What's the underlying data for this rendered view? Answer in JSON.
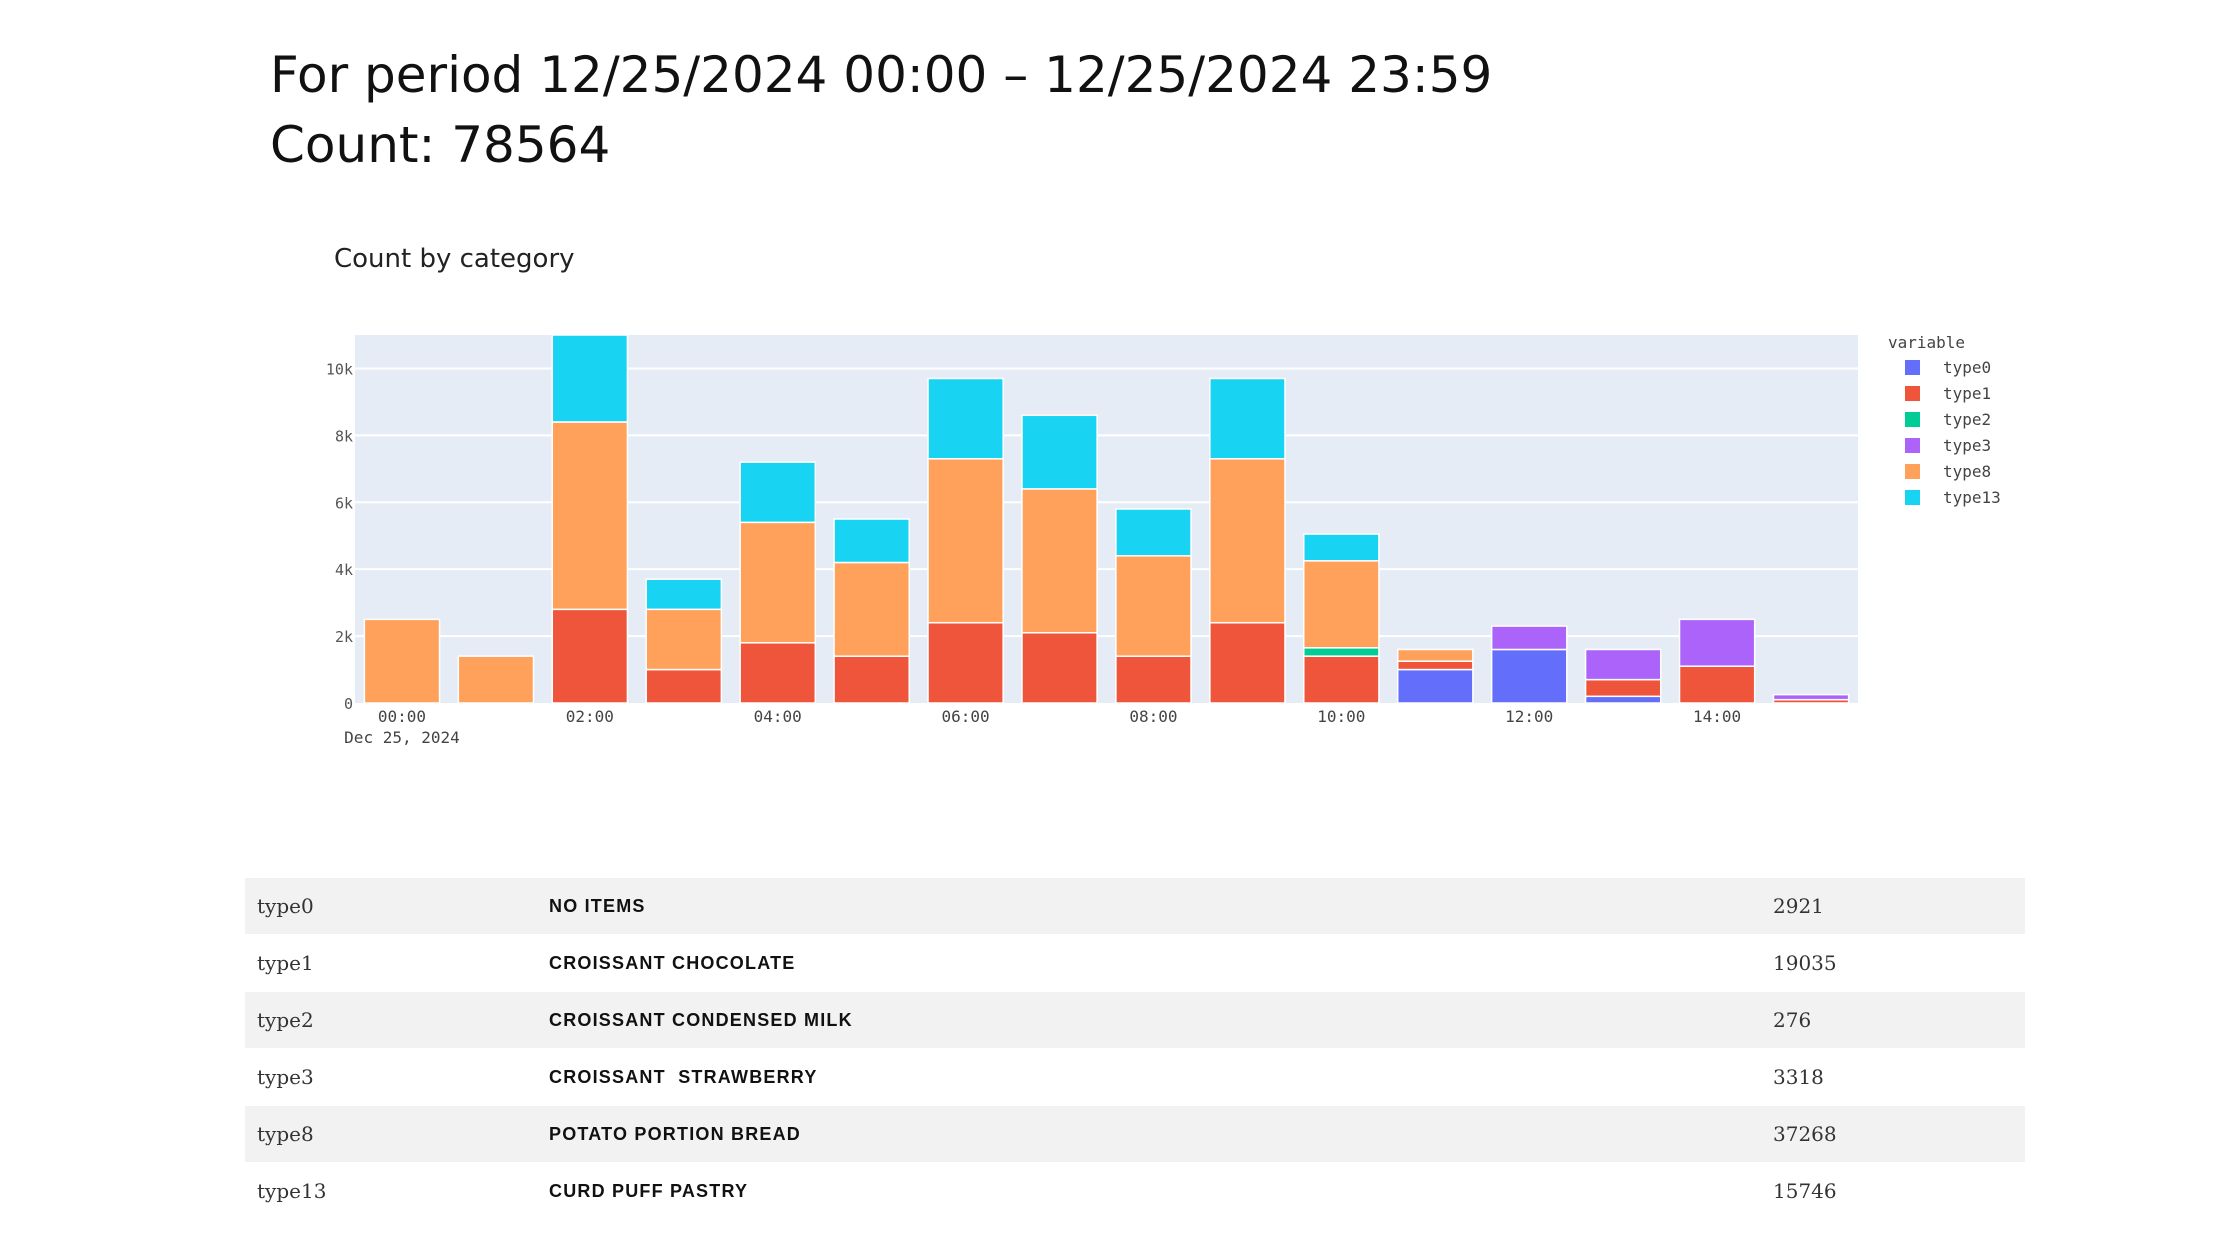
{
  "header": {
    "period": "For period 12/25/2024 00:00 – 12/25/2024 23:59",
    "count": "Count: 78564"
  },
  "chart_data": {
    "type": "bar",
    "stacked": true,
    "title": "Count by category",
    "legend_title": "variable",
    "legend_position": "top-right",
    "grid": true,
    "ylim": [
      0,
      11000
    ],
    "y_ticks": [
      {
        "value": 0,
        "label": "0"
      },
      {
        "value": 2000,
        "label": "2k"
      },
      {
        "value": 4000,
        "label": "4k"
      },
      {
        "value": 6000,
        "label": "6k"
      },
      {
        "value": 8000,
        "label": "8k"
      },
      {
        "value": 10000,
        "label": "10k"
      }
    ],
    "x_ticks": [
      {
        "index": 0,
        "label": "00:00"
      },
      {
        "index": 2,
        "label": "02:00"
      },
      {
        "index": 4,
        "label": "04:00"
      },
      {
        "index": 6,
        "label": "06:00"
      },
      {
        "index": 8,
        "label": "08:00"
      },
      {
        "index": 10,
        "label": "10:00"
      },
      {
        "index": 12,
        "label": "12:00"
      },
      {
        "index": 14,
        "label": "14:00"
      }
    ],
    "x_date_label": "Dec 25, 2024",
    "categories": [
      "00:00",
      "01:00",
      "02:00",
      "03:00",
      "04:00",
      "05:00",
      "06:00",
      "07:00",
      "08:00",
      "09:00",
      "10:00",
      "11:00",
      "12:00",
      "13:00",
      "14:00",
      "15:00"
    ],
    "series": [
      {
        "name": "type0",
        "color": "#636efa",
        "values": [
          0,
          0,
          0,
          0,
          0,
          0,
          0,
          0,
          0,
          0,
          0,
          1000,
          1600,
          200,
          0,
          0
        ]
      },
      {
        "name": "type1",
        "color": "#ef553b",
        "values": [
          0,
          0,
          2800,
          1000,
          1800,
          1400,
          2400,
          2100,
          1400,
          2400,
          1400,
          250,
          0,
          500,
          1100,
          100
        ]
      },
      {
        "name": "type2",
        "color": "#00cc96",
        "values": [
          0,
          0,
          0,
          0,
          0,
          0,
          0,
          0,
          0,
          0,
          250,
          0,
          0,
          0,
          0,
          0
        ]
      },
      {
        "name": "type3",
        "color": "#ab63fa",
        "values": [
          0,
          0,
          0,
          0,
          0,
          0,
          0,
          0,
          0,
          0,
          0,
          0,
          700,
          900,
          1400,
          150
        ]
      },
      {
        "name": "type8",
        "color": "#ffa15a",
        "values": [
          2500,
          1400,
          5600,
          1800,
          3600,
          2800,
          4900,
          4300,
          3000,
          4900,
          2600,
          350,
          0,
          0,
          0,
          0
        ]
      },
      {
        "name": "type13",
        "color": "#19d3f3",
        "values": [
          0,
          0,
          2600,
          900,
          1800,
          1300,
          2400,
          2200,
          1400,
          2400,
          800,
          0,
          0,
          0,
          0,
          0
        ]
      }
    ]
  },
  "table": {
    "rows": [
      {
        "id": "type0",
        "name": "NO ITEMS",
        "count": "2921"
      },
      {
        "id": "type1",
        "name": "CROISSANT CHOCOLATE",
        "count": "19035"
      },
      {
        "id": "type2",
        "name": "CROISSANT CONDENSED MILK",
        "count": "276"
      },
      {
        "id": "type3",
        "name": "CROISSANT  STRAWBERRY",
        "count": "3318"
      },
      {
        "id": "type8",
        "name": "POTATO PORTION BREAD",
        "count": "37268"
      },
      {
        "id": "type13",
        "name": "CURD PUFF PASTRY",
        "count": "15746"
      }
    ]
  }
}
